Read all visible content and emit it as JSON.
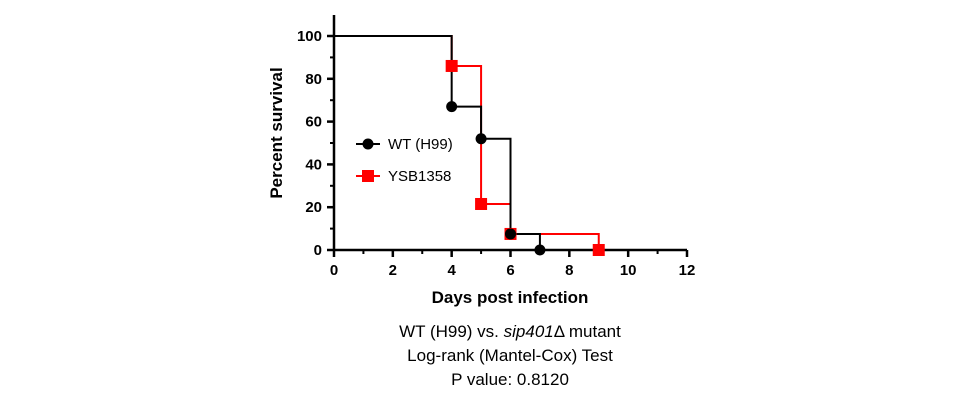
{
  "chart_data": {
    "type": "line",
    "xlabel": "Days post infection",
    "ylabel": "Percent survival",
    "xlim": [
      0,
      12
    ],
    "ylim": [
      0,
      100
    ],
    "x_ticks": [
      0,
      2,
      4,
      6,
      8,
      10,
      12
    ],
    "y_ticks": [
      0,
      20,
      40,
      60,
      80,
      100
    ],
    "grid": false,
    "legend_position": "left-inside",
    "series": [
      {
        "name": "WT (H99)",
        "color": "#000000",
        "marker": "circle",
        "step_x": [
          0,
          4,
          4,
          5,
          5,
          6,
          6,
          7,
          7,
          12
        ],
        "step_y": [
          100,
          100,
          67,
          67,
          52,
          52,
          7.5,
          7.5,
          0,
          0
        ],
        "markers": [
          {
            "x": 4,
            "y": 67
          },
          {
            "x": 5,
            "y": 52
          },
          {
            "x": 6,
            "y": 7.5
          },
          {
            "x": 7,
            "y": 0
          }
        ]
      },
      {
        "name": "YSB1358",
        "color": "#ff0000",
        "marker": "square",
        "step_x": [
          0,
          4,
          4,
          5,
          5,
          6,
          6,
          9,
          9
        ],
        "step_y": [
          100,
          100,
          86,
          86,
          21.5,
          21.5,
          7.5,
          7.5,
          0
        ],
        "markers": [
          {
            "x": 4,
            "y": 86
          },
          {
            "x": 5,
            "y": 21.5
          },
          {
            "x": 6,
            "y": 7.5
          },
          {
            "x": 9,
            "y": 0
          }
        ]
      }
    ]
  },
  "caption": {
    "line1_before": "WT (H99) vs. ",
    "line1_italic": "sip401",
    "line1_after": "Δ mutant",
    "line2": "Log-rank (Mantel-Cox) Test",
    "line3": "P value: 0.8120"
  }
}
